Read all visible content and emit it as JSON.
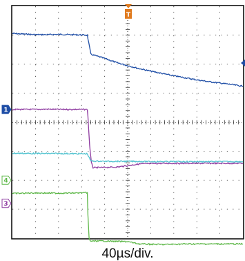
{
  "chart_data": {
    "type": "line",
    "title": "",
    "xlabel": "40µs/div.",
    "ylabel": "",
    "xlim": [
      0,
      400
    ],
    "ylim": [
      -4,
      4
    ],
    "grid": true,
    "x_unit": "µs",
    "trigger_marker": "T",
    "series": [
      {
        "channel_label": "1",
        "color": "#1f4ea6",
        "x": [
          0,
          20,
          40,
          60,
          80,
          100,
          120,
          130,
          136,
          140,
          160,
          180,
          200,
          220,
          240,
          260,
          280,
          300,
          320,
          340,
          360,
          380,
          400
        ],
        "values": [
          3.06,
          3.04,
          3.02,
          3.02,
          3.03,
          3.02,
          3.01,
          3.0,
          2.35,
          2.32,
          2.2,
          2.06,
          1.95,
          1.85,
          1.76,
          1.68,
          1.6,
          1.53,
          1.46,
          1.4,
          1.35,
          1.3,
          1.24
        ]
      },
      {
        "channel_label": "1",
        "color": "#8e3aa0",
        "x": [
          0,
          20,
          40,
          60,
          80,
          100,
          120,
          130,
          131,
          134,
          137,
          140,
          160,
          180,
          200,
          220,
          260,
          300,
          340,
          400
        ],
        "values": [
          0.44,
          0.44,
          0.44,
          0.45,
          0.44,
          0.44,
          0.44,
          0.44,
          0.2,
          -0.8,
          -1.4,
          -1.57,
          -1.56,
          -1.55,
          -1.5,
          -1.44,
          -1.42,
          -1.42,
          -1.42,
          -1.42
        ]
      },
      {
        "channel_label": "",
        "color": "#4fc2cf",
        "x": [
          0,
          40,
          80,
          120,
          130,
          136,
          160,
          200,
          240,
          280,
          320,
          360,
          400
        ],
        "values": [
          -1.07,
          -1.08,
          -1.08,
          -1.09,
          -1.09,
          -1.34,
          -1.35,
          -1.35,
          -1.36,
          -1.36,
          -1.36,
          -1.36,
          -1.36
        ]
      },
      {
        "channel_label": "4",
        "color": "#5fb84a",
        "x": [
          0,
          40,
          80,
          120,
          130,
          131,
          133,
          135,
          160,
          200,
          220,
          260,
          300,
          340,
          400
        ],
        "values": [
          -2.46,
          -2.44,
          -2.45,
          -2.44,
          -2.43,
          -3.2,
          -4.0,
          -4.1,
          -4.1,
          -4.12,
          -4.2,
          -4.22,
          -4.2,
          -4.2,
          -4.2
        ]
      }
    ],
    "extra_markers": [
      {
        "label": "3",
        "color": "#8e3aa0"
      }
    ]
  }
}
